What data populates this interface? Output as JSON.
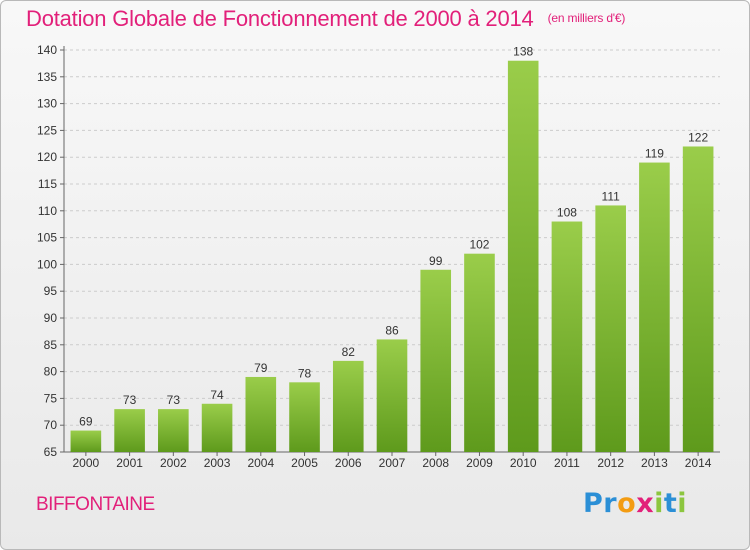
{
  "header": {
    "title": "Dotation Globale de Fonctionnement de 2000 à 2014",
    "unit": "(en milliers d'€)"
  },
  "footer": {
    "commune": "BIFFONTAINE",
    "logo": {
      "P": "P",
      "r": "r",
      "o": "o",
      "x": "x",
      "i": "i",
      "t": "t",
      "i2": "i"
    }
  },
  "colors": {
    "title": "#e2207a",
    "bar_top": "#9acd4a",
    "bar_bottom": "#5e9a1c",
    "grid": "#cccccc"
  },
  "chart_data": {
    "type": "bar",
    "title": "Dotation Globale de Fonctionnement de 2000 à 2014",
    "xlabel": "",
    "ylabel": "",
    "categories": [
      "2000",
      "2001",
      "2002",
      "2003",
      "2004",
      "2005",
      "2006",
      "2007",
      "2008",
      "2009",
      "2010",
      "2011",
      "2012",
      "2013",
      "2014"
    ],
    "values": [
      69,
      73,
      73,
      74,
      79,
      78,
      82,
      86,
      99,
      102,
      138,
      108,
      111,
      119,
      122
    ],
    "ylim": [
      65,
      140
    ],
    "yticks": [
      65,
      70,
      75,
      80,
      85,
      90,
      95,
      100,
      105,
      110,
      115,
      120,
      125,
      130,
      135,
      140
    ],
    "grid": "horizontal dashed",
    "legend": "none"
  }
}
